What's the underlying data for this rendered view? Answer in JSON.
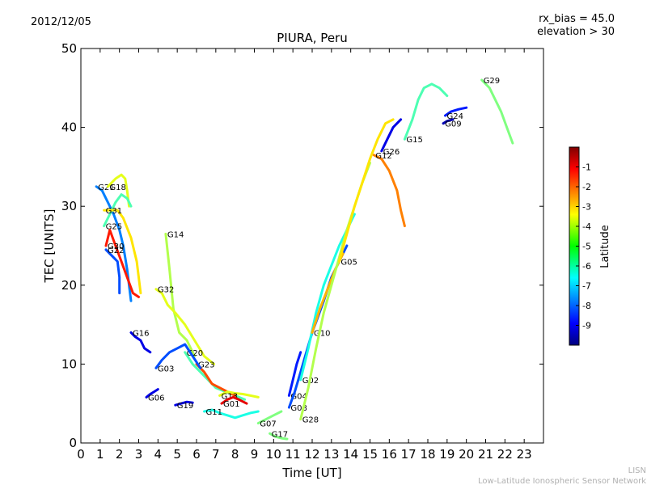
{
  "header": {
    "date": "2012/12/05",
    "rx_bias": "rx_bias = 45.0",
    "elevation": "elevation > 30"
  },
  "footer": {
    "line1": "LISN",
    "line2": "Low-Latitude Ionospheric Sensor Network"
  },
  "colorbar": {
    "label": "Latitude",
    "ticks": [
      "-1",
      "-2",
      "-3",
      "-4",
      "-5",
      "-6",
      "-7",
      "-8",
      "-9"
    ],
    "range": [
      -10,
      0
    ]
  },
  "chart_data": {
    "type": "scatter",
    "title": "PIURA, Peru",
    "xlabel": "Time [UT]",
    "ylabel": "TEC [UNITS]",
    "xlim": [
      0,
      24
    ],
    "ylim": [
      0,
      50
    ],
    "xticks": [
      "0",
      "1",
      "2",
      "3",
      "4",
      "5",
      "6",
      "7",
      "8",
      "9",
      "10",
      "11",
      "12",
      "13",
      "14",
      "15",
      "16",
      "17",
      "18",
      "19",
      "20",
      "21",
      "22",
      "23"
    ],
    "yticks": [
      "0",
      "10",
      "20",
      "30",
      "40",
      "50"
    ],
    "grid": false,
    "color_encoding": "latitude",
    "series": [
      {
        "name": "G21",
        "lat": -7.5,
        "points": [
          [
            0.8,
            32.5
          ],
          [
            1.1,
            32.0
          ],
          [
            1.4,
            30.5
          ],
          [
            1.7,
            29.0
          ],
          [
            2.0,
            27.0
          ],
          [
            2.2,
            25.0
          ],
          [
            2.4,
            22.0
          ],
          [
            2.6,
            18.0
          ]
        ]
      },
      {
        "name": "G18",
        "lat": -4.0,
        "points": [
          [
            1.4,
            32.5
          ],
          [
            1.8,
            33.5
          ],
          [
            2.1,
            34.0
          ],
          [
            2.3,
            33.5
          ],
          [
            2.4,
            32.0
          ],
          [
            2.5,
            30.0
          ]
        ]
      },
      {
        "name": "G25",
        "lat": -5.5,
        "points": [
          [
            1.2,
            27.5
          ],
          [
            1.5,
            29.0
          ],
          [
            1.8,
            30.5
          ],
          [
            2.1,
            31.5
          ],
          [
            2.4,
            31.0
          ],
          [
            2.6,
            30.0
          ]
        ]
      },
      {
        "name": "G31",
        "lat": -3.5,
        "points": [
          [
            1.2,
            29.5
          ],
          [
            1.6,
            29.5
          ],
          [
            1.9,
            29.5
          ],
          [
            2.2,
            28.5
          ],
          [
            2.6,
            26.0
          ],
          [
            2.9,
            23.0
          ],
          [
            3.1,
            19.0
          ]
        ]
      },
      {
        "name": "G30",
        "lat": -1.5,
        "points": [
          [
            1.3,
            25.0
          ],
          [
            1.5,
            27.0
          ],
          [
            1.8,
            25.0
          ],
          [
            2.1,
            23.0
          ],
          [
            2.4,
            21.0
          ],
          [
            2.7,
            19.0
          ],
          [
            3.0,
            18.5
          ]
        ]
      },
      {
        "name": "G22",
        "lat": -8.0,
        "points": [
          [
            1.3,
            24.5
          ],
          [
            1.5,
            24.0
          ],
          [
            1.7,
            23.5
          ],
          [
            1.9,
            23.0
          ],
          [
            2.0,
            21.0
          ],
          [
            2.0,
            19.0
          ]
        ]
      },
      {
        "name": "G14",
        "lat": -4.5,
        "points": [
          [
            4.4,
            26.5
          ],
          [
            4.6,
            22.0
          ],
          [
            4.8,
            17.0
          ],
          [
            5.1,
            14.0
          ],
          [
            5.5,
            13.0
          ],
          [
            5.9,
            11.0
          ]
        ]
      },
      {
        "name": "G32",
        "lat": -4.0,
        "points": [
          [
            3.9,
            19.5
          ],
          [
            4.2,
            19.0
          ],
          [
            4.5,
            17.5
          ],
          [
            4.9,
            16.5
          ],
          [
            5.4,
            15.0
          ],
          [
            5.9,
            13.0
          ],
          [
            6.4,
            11.0
          ],
          [
            6.9,
            10.0
          ]
        ]
      },
      {
        "name": "G16",
        "lat": -9.0,
        "points": [
          [
            2.6,
            14.0
          ],
          [
            2.8,
            13.5
          ],
          [
            3.1,
            13.0
          ],
          [
            3.3,
            12.0
          ],
          [
            3.6,
            11.5
          ]
        ]
      },
      {
        "name": "G20",
        "lat": -5.5,
        "points": [
          [
            5.4,
            11.5
          ],
          [
            5.8,
            10.0
          ],
          [
            6.2,
            9.0
          ],
          [
            6.6,
            8.0
          ],
          [
            7.0,
            7.0
          ],
          [
            7.5,
            6.5
          ],
          [
            8.0,
            6.0
          ],
          [
            8.5,
            5.5
          ]
        ]
      },
      {
        "name": "G23",
        "lat": -2.0,
        "points": [
          [
            6.0,
            10.0
          ],
          [
            6.4,
            9.0
          ],
          [
            6.8,
            7.5
          ],
          [
            7.2,
            7.0
          ],
          [
            7.6,
            6.5
          ],
          [
            8.0,
            6.0
          ]
        ]
      },
      {
        "name": "G03",
        "lat": -8.0,
        "points": [
          [
            3.9,
            9.5
          ],
          [
            4.2,
            10.5
          ],
          [
            4.6,
            11.5
          ],
          [
            5.0,
            12.0
          ],
          [
            5.4,
            12.5
          ],
          [
            5.8,
            11.0
          ],
          [
            6.2,
            9.5
          ]
        ]
      },
      {
        "name": "G06",
        "lat": -9.0,
        "points": [
          [
            3.4,
            5.8
          ],
          [
            3.6,
            6.2
          ],
          [
            3.8,
            6.5
          ],
          [
            4.0,
            6.8
          ]
        ]
      },
      {
        "name": "G13",
        "lat": -4.0,
        "points": [
          [
            7.2,
            6.0
          ],
          [
            7.6,
            6.5
          ],
          [
            8.0,
            6.3
          ],
          [
            8.4,
            6.2
          ],
          [
            8.8,
            6.0
          ],
          [
            9.2,
            5.8
          ]
        ]
      },
      {
        "name": "G19",
        "lat": -9.0,
        "points": [
          [
            4.9,
            4.8
          ],
          [
            5.2,
            5.0
          ],
          [
            5.5,
            5.2
          ],
          [
            5.8,
            5.1
          ]
        ]
      },
      {
        "name": "G01",
        "lat": -1.0,
        "points": [
          [
            7.3,
            5.0
          ],
          [
            7.6,
            5.5
          ],
          [
            7.9,
            5.8
          ],
          [
            8.2,
            5.5
          ],
          [
            8.6,
            5.0
          ]
        ]
      },
      {
        "name": "G11",
        "lat": -6.0,
        "points": [
          [
            6.4,
            4.0
          ],
          [
            6.8,
            4.2
          ],
          [
            7.2,
            3.8
          ],
          [
            7.6,
            3.5
          ],
          [
            8.0,
            3.2
          ],
          [
            8.4,
            3.5
          ],
          [
            8.8,
            3.8
          ],
          [
            9.2,
            4.0
          ]
        ]
      },
      {
        "name": "G07",
        "lat": -5.0,
        "points": [
          [
            9.2,
            2.5
          ],
          [
            9.6,
            3.0
          ],
          [
            10.0,
            3.5
          ],
          [
            10.4,
            4.0
          ]
        ]
      },
      {
        "name": "G17",
        "lat": -5.0,
        "points": [
          [
            9.8,
            1.2
          ],
          [
            10.1,
            0.8
          ],
          [
            10.4,
            0.6
          ],
          [
            10.7,
            0.5
          ]
        ]
      },
      {
        "name": "G04",
        "lat": -8.5,
        "points": [
          [
            10.8,
            6.0
          ],
          [
            11.0,
            8.0
          ],
          [
            11.2,
            10.0
          ],
          [
            11.4,
            11.5
          ]
        ]
      },
      {
        "name": "G08",
        "lat": -8.0,
        "points": [
          [
            10.8,
            4.5
          ],
          [
            11.1,
            6.5
          ],
          [
            11.4,
            9.0
          ],
          [
            11.7,
            11.5
          ],
          [
            12.0,
            14.0
          ],
          [
            12.3,
            16.0
          ],
          [
            12.6,
            18.0
          ],
          [
            13.0,
            21.0
          ],
          [
            13.4,
            23.0
          ],
          [
            13.8,
            25.0
          ]
        ]
      },
      {
        "name": "G02",
        "lat": -6.0,
        "points": [
          [
            11.4,
            8.0
          ],
          [
            11.8,
            12.0
          ],
          [
            12.2,
            16.5
          ],
          [
            12.6,
            20.0
          ],
          [
            13.0,
            22.5
          ],
          [
            13.4,
            25.0
          ],
          [
            13.8,
            27.0
          ],
          [
            14.2,
            29.0
          ]
        ]
      },
      {
        "name": "G10",
        "lat": -3.0,
        "points": [
          [
            12.0,
            14.0
          ],
          [
            12.4,
            17.0
          ],
          [
            12.8,
            19.5
          ],
          [
            13.2,
            22.0
          ],
          [
            13.6,
            24.0
          ]
        ]
      },
      {
        "name": "G28",
        "lat": -4.5,
        "points": [
          [
            11.4,
            3.0
          ],
          [
            11.8,
            7.0
          ],
          [
            12.2,
            12.0
          ],
          [
            12.6,
            16.5
          ],
          [
            13.0,
            20.0
          ],
          [
            13.4,
            23.5
          ],
          [
            13.8,
            27.0
          ],
          [
            14.2,
            30.0
          ],
          [
            14.6,
            33.0
          ],
          [
            15.0,
            35.5
          ]
        ]
      },
      {
        "name": "G05",
        "lat": -3.5,
        "points": [
          [
            13.4,
            23.0
          ],
          [
            13.8,
            26.5
          ],
          [
            14.2,
            30.0
          ],
          [
            14.6,
            33.0
          ],
          [
            15.0,
            36.0
          ],
          [
            15.4,
            38.5
          ],
          [
            15.8,
            40.5
          ],
          [
            16.2,
            41.0
          ]
        ]
      },
      {
        "name": "G26",
        "lat": -9.0,
        "points": [
          [
            15.6,
            37.0
          ],
          [
            15.9,
            38.5
          ],
          [
            16.2,
            40.0
          ],
          [
            16.6,
            41.0
          ]
        ]
      },
      {
        "name": "G12",
        "lat": -2.5,
        "points": [
          [
            15.2,
            36.5
          ],
          [
            15.6,
            36.0
          ],
          [
            16.0,
            34.5
          ],
          [
            16.4,
            32.0
          ],
          [
            16.6,
            29.5
          ],
          [
            16.8,
            27.5
          ]
        ]
      },
      {
        "name": "G15",
        "lat": -5.5,
        "points": [
          [
            16.8,
            38.5
          ],
          [
            17.2,
            41.0
          ],
          [
            17.5,
            43.5
          ],
          [
            17.8,
            45.0
          ],
          [
            18.2,
            45.5
          ],
          [
            18.6,
            45.0
          ],
          [
            19.0,
            44.0
          ]
        ]
      },
      {
        "name": "G24",
        "lat": -8.5,
        "points": [
          [
            18.9,
            41.5
          ],
          [
            19.2,
            42.0
          ],
          [
            19.6,
            42.3
          ],
          [
            20.0,
            42.5
          ]
        ]
      },
      {
        "name": "G09",
        "lat": -9.5,
        "points": [
          [
            18.8,
            40.5
          ],
          [
            19.0,
            40.8
          ],
          [
            19.3,
            41.0
          ]
        ]
      },
      {
        "name": "G29",
        "lat": -5.0,
        "points": [
          [
            20.8,
            46.0
          ],
          [
            21.2,
            45.0
          ],
          [
            21.5,
            43.5
          ],
          [
            21.8,
            42.0
          ],
          [
            22.1,
            40.0
          ],
          [
            22.4,
            38.0
          ]
        ]
      }
    ]
  }
}
